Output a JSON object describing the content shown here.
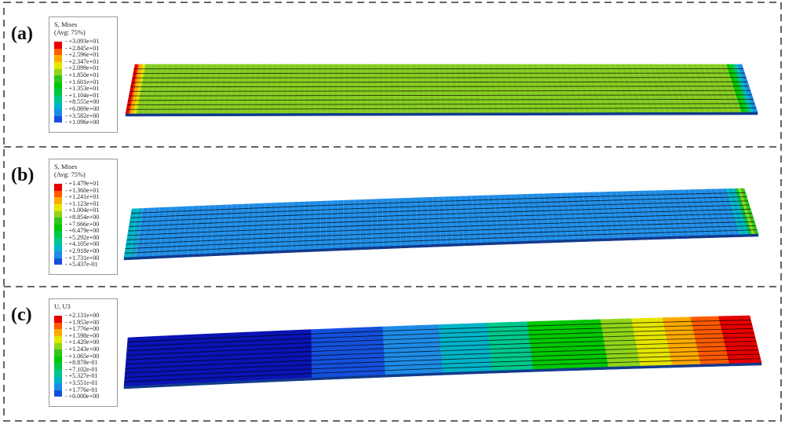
{
  "panels": [
    {
      "label": "(a)",
      "legend": {
        "title": "S, Mises",
        "subtitle": "(Avg: 75%)",
        "values": [
          "+3.093e+01",
          "+2.845e+01",
          "+2.596e+01",
          "+2.347e+01",
          "+2.099e+01",
          "+1.850e+01",
          "+1.601e+01",
          "+1.353e+01",
          "+1.104e+01",
          "+8.555e+00",
          "+6.069e+00",
          "+3.582e+00",
          "+1.096e+00"
        ]
      }
    },
    {
      "label": "(b)",
      "legend": {
        "title": "S, Mises",
        "subtitle": "(Avg: 75%)",
        "values": [
          "+1.479e+01",
          "+1.360e+01",
          "+1.241e+01",
          "+1.123e+01",
          "+1.004e+01",
          "+8.854e+00",
          "+7.666e+00",
          "+6.479e+00",
          "+5.292e+00",
          "+4.105e+00",
          "+2.918e+00",
          "+1.731e+00",
          "+5.437e-01"
        ]
      }
    },
    {
      "label": "(c)",
      "legend": {
        "title": "U, U3",
        "subtitle": "",
        "values": [
          "+2.131e+00",
          "+1.953e+00",
          "+1.776e+00",
          "+1.598e+00",
          "+1.420e+00",
          "+1.243e+00",
          "+1.065e+00",
          "+8.878e-01",
          "+7.102e-01",
          "+5.327e-01",
          "+3.551e-01",
          "+1.776e-01",
          "+0.000e+00"
        ]
      }
    }
  ],
  "colormap": [
    "#e60000",
    "#ff5a00",
    "#ffaa00",
    "#e6e600",
    "#8fd51a",
    "#2ec81a",
    "#00c800",
    "#00c845",
    "#00c88c",
    "#00b4c8",
    "#1e8ce6",
    "#1450dc",
    "#0a14b4"
  ]
}
